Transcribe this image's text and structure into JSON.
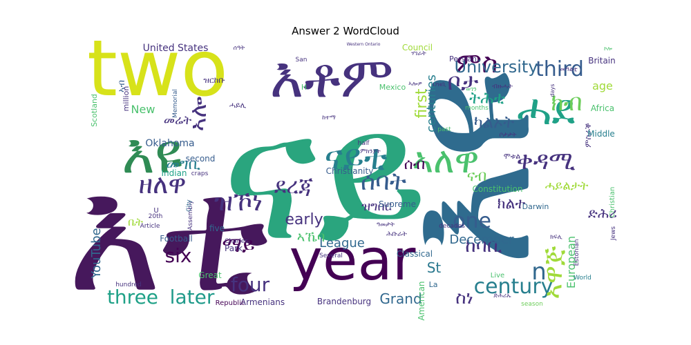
{
  "chart_data": {
    "type": "wordcloud",
    "title": "Answer 2 WordCloud",
    "palette": [
      "#440154",
      "#46327e",
      "#365c8d",
      "#277f8e",
      "#1fa187",
      "#4ac16d",
      "#a0da39",
      "#fde725"
    ],
    "words": [
      {
        "text": "ናይ",
        "weight": 100,
        "color": "#2aa57e"
      },
      {
        "text": "እቲ",
        "weight": 96,
        "color": "#46185c"
      },
      {
        "text": "እዩ",
        "weight": 88,
        "color": "#2f6b8e"
      },
      {
        "text": "two",
        "weight": 70,
        "color": "#d7e21a"
      },
      {
        "text": "year",
        "weight": 56,
        "color": "#440154"
      },
      {
        "text": "እቶም",
        "weight": 52,
        "color": "#46327e"
      },
      {
        "text": "ሓደ",
        "weight": 44,
        "color": "#1fa187"
      },
      {
        "text": "እዩ",
        "weight": 42,
        "color": "#2f8b54"
      },
      {
        "text": "ናይቲ",
        "weight": 40,
        "color": "#277f8e"
      },
      {
        "text": "ኣለዋ",
        "weight": 36,
        "color": "#4ac16d"
      },
      {
        "text": "ምስ",
        "weight": 30,
        "color": "#440154"
      },
      {
        "text": "ዘለዋ",
        "weight": 28,
        "color": "#46327e"
      },
      {
        "text": "ዝኾነ",
        "weight": 26,
        "color": "#46327e"
      },
      {
        "text": "ቀዳሚ",
        "weight": 26,
        "color": "#46327e"
      },
      {
        "text": "ክብ",
        "weight": 26,
        "color": "#6ccd5a"
      },
      {
        "text": "ሰባት",
        "weight": 26,
        "color": "#365c8d"
      },
      {
        "text": "ደረጃ",
        "weight": 26,
        "color": "#46327e"
      },
      {
        "text": "ኣሎ",
        "weight": 24,
        "color": "#46327e"
      },
      {
        "text": "ቦታ",
        "weight": 24,
        "color": "#46327e"
      },
      {
        "text": "third",
        "weight": 24,
        "color": "#365c8d"
      },
      {
        "text": "University",
        "weight": 22,
        "color": "#31688e"
      },
      {
        "text": "four",
        "weight": 22,
        "color": "#46327e"
      },
      {
        "text": "three",
        "weight": 22,
        "color": "#1fa187"
      },
      {
        "text": "later",
        "weight": 22,
        "color": "#1f9a8a"
      },
      {
        "text": "century",
        "weight": 22,
        "color": "#277f8e"
      },
      {
        "text": "one",
        "weight": 22,
        "color": "#365c8d"
      },
      {
        "text": "six",
        "weight": 22,
        "color": "#440154"
      },
      {
        "text": "ከባቢ",
        "weight": 20,
        "color": "#46327e"
      },
      {
        "text": "ማይ",
        "weight": 20,
        "color": "#440154"
      },
      {
        "text": "መግቢ",
        "weight": 18,
        "color": "#277f8e"
      },
      {
        "text": "ትሕቲ",
        "weight": 18,
        "color": "#1fa187"
      },
      {
        "text": "ካልኦት",
        "weight": 18,
        "color": "#365c8d"
      },
      {
        "text": "n",
        "weight": 20,
        "color": "#31688e"
      },
      {
        "text": "first",
        "weight": 18,
        "color": "#a0da39"
      },
      {
        "text": "centuries",
        "weight": 16,
        "color": "#277f8e"
      },
      {
        "text": "December",
        "weight": 16,
        "color": "#31688e"
      },
      {
        "text": "Grand",
        "weight": 16,
        "color": "#31688e"
      },
      {
        "text": "early",
        "weight": 16,
        "color": "#46327e"
      },
      {
        "text": "League",
        "weight": 14,
        "color": "#31688e"
      },
      {
        "text": "ኣኼባ",
        "weight": 14,
        "color": "#4ac16d"
      },
      {
        "text": "ዝግበር",
        "weight": 14,
        "color": "#46327e"
      },
      {
        "text": "ሰብ",
        "weight": 16,
        "color": "#440154"
      },
      {
        "text": "ናብ",
        "weight": 16,
        "color": "#6ccd5a"
      },
      {
        "text": "ክልተ",
        "weight": 14,
        "color": "#46327e"
      },
      {
        "text": "ሓይልታት",
        "weight": 14,
        "color": "#a0da39"
      },
      {
        "text": "ድሕሪ",
        "weight": 14,
        "color": "#46327e"
      },
      {
        "text": "ኣዋጅ",
        "weight": 20,
        "color": "#a0da39"
      },
      {
        "text": "European",
        "weight": 14,
        "color": "#4ac16d"
      },
      {
        "text": "ስነ",
        "weight": 16,
        "color": "#46327e"
      },
      {
        "text": "New",
        "weight": 14,
        "color": "#4ac16d"
      },
      {
        "text": "መሬት",
        "weight": 14,
        "color": "#46327e"
      },
      {
        "text": "ምስራቕ",
        "weight": 12,
        "color": "#46327e"
      },
      {
        "text": "YouTube",
        "weight": 14,
        "color": "#31688e"
      },
      {
        "text": "Oklahoma",
        "weight": 12,
        "color": "#365c8d"
      },
      {
        "text": "United States",
        "weight": 12,
        "color": "#46327e"
      },
      {
        "text": "age",
        "weight": 12,
        "color": "#a0da39"
      },
      {
        "text": "St",
        "weight": 14,
        "color": "#2a788e"
      },
      {
        "text": "Football",
        "weight": 11,
        "color": "#365c8d"
      },
      {
        "text": "Christianity",
        "weight": 10,
        "color": "#365c8d"
      },
      {
        "text": "Supreme",
        "weight": 10,
        "color": "#365c8d"
      },
      {
        "text": "Constitution",
        "weight": 10,
        "color": "#4ac16d"
      },
      {
        "text": "Classical",
        "weight": 10,
        "color": "#31688e"
      },
      {
        "text": "American",
        "weight": 10,
        "color": "#4ac16d"
      },
      {
        "text": "Brandenburg",
        "weight": 10,
        "color": "#46327e"
      },
      {
        "text": "Armenians",
        "weight": 10,
        "color": "#46327e"
      },
      {
        "text": "Republic",
        "weight": 9,
        "color": "#440154"
      },
      {
        "text": "Great",
        "weight": 10,
        "color": "#4ac16d"
      },
      {
        "text": "Park",
        "weight": 10,
        "color": "#46327e"
      },
      {
        "text": "Indian",
        "weight": 10,
        "color": "#1fa187"
      },
      {
        "text": "second",
        "weight": 10,
        "color": "#365c8d"
      },
      {
        "text": "five",
        "weight": 10,
        "color": "#31688e"
      },
      {
        "text": "Council",
        "weight": 10,
        "color": "#a0da39"
      },
      {
        "text": "Britain",
        "weight": 10,
        "color": "#46327e"
      },
      {
        "text": "Africa",
        "weight": 10,
        "color": "#4ac16d"
      },
      {
        "text": "Middle",
        "weight": 10,
        "color": "#277f8e"
      },
      {
        "text": "Christian",
        "weight": 9,
        "color": "#4ac16d"
      },
      {
        "text": "Darwin",
        "weight": 9,
        "color": "#31688e"
      },
      {
        "text": "Scotland",
        "weight": 9,
        "color": "#4ac16d"
      },
      {
        "text": "million",
        "weight": 9,
        "color": "#46327e"
      },
      {
        "text": "Mexico",
        "weight": 9,
        "color": "#4ac16d"
      },
      {
        "text": "Persian",
        "weight": 9,
        "color": "#46327e"
      },
      {
        "text": "Estonian",
        "weight": 8,
        "color": "#46327e"
      },
      {
        "text": "Live",
        "weight": 9,
        "color": "#4ac16d"
      },
      {
        "text": "World",
        "weight": 8,
        "color": "#277f8e"
      },
      {
        "text": "Jews",
        "weight": 8,
        "color": "#46327e"
      },
      {
        "text": "season",
        "weight": 8,
        "color": "#6ccd5a"
      },
      {
        "text": "La",
        "weight": 9,
        "color": "#31688e"
      },
      {
        "text": "half",
        "weight": 8,
        "color": "#46327e"
      },
      {
        "text": "past",
        "weight": 8,
        "color": "#4ac16d"
      },
      {
        "text": "months",
        "weight": 8,
        "color": "#4ac16d"
      },
      {
        "text": "days",
        "weight": 8,
        "color": "#46327e"
      },
      {
        "text": "decades",
        "weight": 8,
        "color": "#46327e"
      },
      {
        "text": "Several",
        "weight": 8,
        "color": "#46327e"
      },
      {
        "text": "hundred",
        "weight": 8,
        "color": "#46327e"
      },
      {
        "text": "Article",
        "weight": 8,
        "color": "#46327e"
      },
      {
        "text": "Assembly",
        "weight": 8,
        "color": "#46327e"
      },
      {
        "text": "Memorial",
        "weight": 8,
        "color": "#365c8d"
      },
      {
        "text": "Charles",
        "weight": 9,
        "color": "#46327e"
      },
      {
        "text": "San",
        "weight": 8,
        "color": "#46327e"
      },
      {
        "text": "City",
        "weight": 8,
        "color": "#31688e"
      },
      {
        "text": "20th",
        "weight": 8,
        "color": "#46327e"
      },
      {
        "text": "U",
        "weight": 9,
        "color": "#46327e"
      },
      {
        "text": "H",
        "weight": 9,
        "color": "#4ac16d"
      },
      {
        "text": "craps",
        "weight": 8,
        "color": "#46327e"
      },
      {
        "text": "Western Ontario",
        "weight": 6,
        "color": "#46327e"
      },
      {
        "text": "ዝርከቡ",
        "weight": 10,
        "color": "#46327e"
      },
      {
        "text": "ብዙሓት",
        "weight": 10,
        "color": "#46327e"
      },
      {
        "text": "ህዝቢ",
        "weight": 9,
        "color": "#46327e"
      },
      {
        "text": "ወገን",
        "weight": 9,
        "color": "#4ac16d"
      },
      {
        "text": "ኣብ",
        "weight": 11,
        "color": "#365c8d"
      },
      {
        "text": "ሕቡራት",
        "weight": 9,
        "color": "#46327e"
      },
      {
        "text": "ዓመታት",
        "weight": 9,
        "color": "#46327e"
      },
      {
        "text": "ቤት",
        "weight": 12,
        "color": "#a0da39"
      },
      {
        "text": "ምክንያት",
        "weight": 9,
        "color": "#46327e"
      },
      {
        "text": "ሃገራት",
        "weight": 9,
        "color": "#46327e"
      },
      {
        "text": "ከተማ",
        "weight": 9,
        "color": "#46327e"
      },
      {
        "text": "ሓይሊ",
        "weight": 9,
        "color": "#46327e"
      },
      {
        "text": "መዓልቲ",
        "weight": 9,
        "color": "#46327e"
      },
      {
        "text": "ቦታታት",
        "weight": 9,
        "color": "#46327e"
      },
      {
        "text": "ሞቱል",
        "weight": 10,
        "color": "#46327e"
      },
      {
        "text": "ኣሎዎ",
        "weight": 9,
        "color": "#46327e"
      },
      {
        "text": "ድሕሪኡ",
        "weight": 9,
        "color": "#46327e"
      },
      {
        "text": "ሰዓት",
        "weight": 8,
        "color": "#46327e"
      },
      {
        "text": "ኮሎ",
        "weight": 7,
        "color": "#4ac16d"
      },
      {
        "text": "ክፍሊ",
        "weight": 8,
        "color": "#46327e"
      }
    ]
  }
}
